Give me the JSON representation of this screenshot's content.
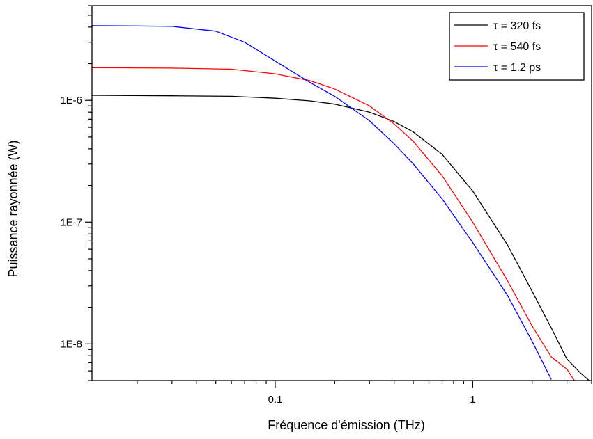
{
  "chart_data": {
    "type": "line",
    "xlabel": "Fréquence d'émission (THz)",
    "ylabel": "Puissance rayonnée (W)",
    "xscale": "log",
    "yscale": "log",
    "xlim": [
      0.0118,
      4.0
    ],
    "ylim": [
      5e-09,
      6e-06
    ],
    "x_ticks": [
      {
        "value": 0.1,
        "label": "0.1"
      },
      {
        "value": 1,
        "label": "1"
      }
    ],
    "y_ticks": [
      {
        "value": 1e-08,
        "label": "1E-8"
      },
      {
        "value": 1e-07,
        "label": "1E-7"
      },
      {
        "value": 1e-06,
        "label": "1E-6"
      }
    ],
    "grid": false,
    "legend_position": "top-right",
    "series": [
      {
        "name": "τ = 320 fs",
        "color": "#000000",
        "x": [
          0.0118,
          0.03,
          0.06,
          0.1,
          0.15,
          0.2,
          0.3,
          0.4,
          0.5,
          0.7,
          1.0,
          1.5,
          2.0,
          2.5,
          3.0,
          3.5,
          4.0
        ],
        "y": [
          1.1e-06,
          1.09e-06,
          1.08e-06,
          1.04e-06,
          9.9e-07,
          9.3e-07,
          8e-07,
          6.7e-07,
          5.5e-07,
          3.6e-07,
          1.8e-07,
          6.5e-08,
          2.7e-08,
          1.35e-08,
          7.5e-09,
          5.8e-09,
          4.8e-09
        ]
      },
      {
        "name": "τ = 540 fs",
        "color": "#ff0000",
        "x": [
          0.0118,
          0.03,
          0.06,
          0.1,
          0.15,
          0.2,
          0.3,
          0.4,
          0.5,
          0.7,
          1.0,
          1.5,
          2.0,
          2.5,
          3.0,
          3.3
        ],
        "y": [
          1.85e-06,
          1.84e-06,
          1.8e-06,
          1.65e-06,
          1.45e-06,
          1.24e-06,
          9e-07,
          6.4e-07,
          4.6e-07,
          2.4e-07,
          1e-07,
          3.3e-08,
          1.4e-08,
          7.8e-09,
          6.2e-09,
          4.9e-09
        ]
      },
      {
        "name": "τ = 1.2 ps",
        "color": "#0000ff",
        "x": [
          0.0118,
          0.02,
          0.03,
          0.05,
          0.07,
          0.1,
          0.15,
          0.2,
          0.3,
          0.4,
          0.5,
          0.7,
          1.0,
          1.5,
          2.0,
          2.5
        ],
        "y": [
          4.1e-06,
          4.08e-06,
          4.05e-06,
          3.7e-06,
          3e-06,
          2.1e-06,
          1.4e-06,
          1.08e-06,
          6.8e-07,
          4.4e-07,
          3e-07,
          1.55e-07,
          6.8e-08,
          2.5e-08,
          1.05e-08,
          5.1e-09
        ]
      }
    ]
  }
}
